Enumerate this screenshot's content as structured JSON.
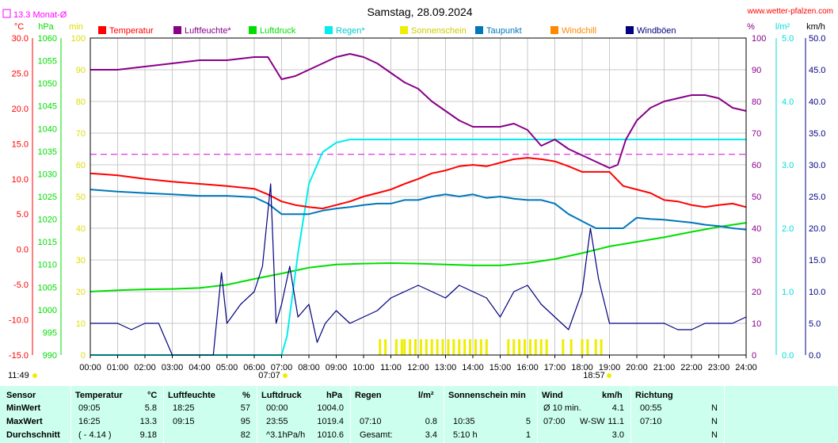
{
  "header": {
    "title": "Samstag, 28.09.2024",
    "website": "www.wetter-pfalzen.com",
    "monthly_rain": "13.3 Monat-Ø",
    "sunrise_time": "07:07",
    "sunset_time": "18:57",
    "left_corner_time": "11:49"
  },
  "axes": {
    "temp": {
      "unit": "°C",
      "min": -15,
      "max": 30,
      "ticks": [
        "30.0",
        "25.0",
        "20.0",
        "15.0",
        "10.0",
        "5.0",
        "0.0",
        "-5.0",
        "-10.0",
        "-15.0"
      ],
      "color": "#ff0000"
    },
    "pressure": {
      "unit": "hPa",
      "min": 990,
      "max": 1060,
      "ticks": [
        "1060",
        "1055",
        "1050",
        "1045",
        "1040",
        "1035",
        "1030",
        "1025",
        "1020",
        "1015",
        "1010",
        "1005",
        "1000",
        "995",
        "990"
      ],
      "color": "#00dd00"
    },
    "sun_min": {
      "unit": "min",
      "min": 0,
      "max": 100,
      "ticks": [
        "100",
        "90",
        "80",
        "70",
        "60",
        "50",
        "40",
        "30",
        "20",
        "10",
        "0"
      ],
      "color": "#dddd00"
    },
    "humidity": {
      "unit": "%",
      "min": 0,
      "max": 100,
      "ticks": [
        "100",
        "90",
        "80",
        "70",
        "60",
        "50",
        "40",
        "30",
        "20",
        "10",
        "0"
      ],
      "color": "#880088"
    },
    "rain": {
      "unit": "l/m²",
      "min": 0,
      "max": 5,
      "ticks": [
        "5.0",
        "4.0",
        "3.0",
        "2.0",
        "1.0",
        "0.0"
      ],
      "color": "#00dddd"
    },
    "wind": {
      "unit": "km/h",
      "min": 0,
      "max": 50,
      "ticks": [
        "50.0",
        "45.0",
        "40.0",
        "35.0",
        "30.0",
        "25.0",
        "20.0",
        "15.0",
        "10.0",
        "5.0",
        "0.0"
      ],
      "color": "#000080"
    },
    "x_ticks": [
      "00:00",
      "01:00",
      "02:00",
      "03:00",
      "04:00",
      "05:00",
      "06:00",
      "07:00",
      "08:00",
      "09:00",
      "10:00",
      "11:00",
      "12:00",
      "13:00",
      "14:00",
      "15:00",
      "16:00",
      "17:00",
      "18:00",
      "19:00",
      "20:00",
      "21:00",
      "22:00",
      "23:00",
      "24:00"
    ]
  },
  "legend": [
    {
      "label": "Temperatur",
      "color": "#ff0000"
    },
    {
      "label": "Luftfeuchte*",
      "color": "#880088"
    },
    {
      "label": "Luftdruck",
      "color": "#00dd00"
    },
    {
      "label": "Regen*",
      "color": "#00eeee"
    },
    {
      "label": "Sonnenschein",
      "color": "#eeee00"
    },
    {
      "label": "Taupunkt",
      "color": "#0077bb"
    },
    {
      "label": "Windchill",
      "color": "#ff8800"
    },
    {
      "label": "Windböen",
      "color": "#000080"
    }
  ],
  "chart_data": {
    "type": "line",
    "title": "Samstag, 28.09.2024",
    "x_unit": "hours",
    "xlim": [
      0,
      24
    ],
    "grid": true,
    "monthly_avg_humidity_line": 63.3,
    "series": [
      {
        "name": "Temperatur",
        "axis": "temp",
        "color": "#ff0000",
        "x": [
          0,
          1,
          2,
          3,
          4,
          5,
          6,
          6.5,
          7,
          7.5,
          8,
          8.5,
          9,
          9.5,
          10,
          10.5,
          11,
          11.5,
          12,
          12.5,
          13,
          13.5,
          14,
          14.5,
          15,
          15.5,
          16,
          16.5,
          17,
          17.5,
          18,
          18.5,
          19,
          19.5,
          20,
          20.5,
          21,
          21.5,
          22,
          22.5,
          23,
          23.5,
          24
        ],
        "y": [
          10.8,
          10.5,
          10.0,
          9.6,
          9.3,
          9.0,
          8.6,
          7.8,
          6.8,
          6.3,
          6.0,
          5.8,
          6.3,
          6.8,
          7.5,
          8.0,
          8.5,
          9.3,
          10.0,
          10.8,
          11.2,
          11.8,
          12.0,
          11.8,
          12.3,
          12.8,
          13.0,
          12.8,
          12.5,
          11.8,
          11.0,
          11.0,
          11.0,
          9.0,
          8.5,
          8.0,
          7.0,
          6.8,
          6.3,
          6.0,
          6.3,
          6.5,
          6.0
        ]
      },
      {
        "name": "Luftfeuchte*",
        "axis": "humidity",
        "color": "#880088",
        "x": [
          0,
          1,
          2,
          3,
          4,
          5,
          6,
          6.5,
          7,
          7.5,
          8,
          8.5,
          9,
          9.5,
          10,
          10.5,
          11,
          11.5,
          12,
          12.5,
          13,
          13.5,
          14,
          14.5,
          15,
          15.5,
          16,
          16.5,
          17,
          17.5,
          18,
          18.5,
          19,
          19.3,
          19.6,
          20,
          20.5,
          21,
          21.5,
          22,
          22.5,
          23,
          23.5,
          24
        ],
        "y": [
          90,
          90,
          91,
          92,
          93,
          93,
          94,
          94,
          87,
          88,
          90,
          92,
          94,
          95,
          94,
          92,
          89,
          86,
          84,
          80,
          77,
          74,
          72,
          72,
          72,
          73,
          71,
          66,
          68,
          65,
          63,
          61,
          59,
          60,
          68,
          74,
          78,
          80,
          81,
          82,
          82,
          81,
          78,
          77
        ]
      },
      {
        "name": "Luftdruck",
        "axis": "pressure",
        "color": "#00dd00",
        "x": [
          0,
          1,
          2,
          3,
          4,
          5,
          6,
          7,
          8,
          9,
          10,
          11,
          12,
          13,
          14,
          15,
          16,
          17,
          18,
          19,
          20,
          21,
          22,
          23,
          24
        ],
        "y": [
          1004.0,
          1004.3,
          1004.5,
          1004.6,
          1004.8,
          1005.5,
          1006.8,
          1008.0,
          1009.3,
          1010.0,
          1010.2,
          1010.3,
          1010.2,
          1010.0,
          1009.8,
          1009.8,
          1010.3,
          1011.2,
          1012.5,
          1014.0,
          1015.0,
          1016.0,
          1017.2,
          1018.3,
          1019.2
        ]
      },
      {
        "name": "Regen*",
        "axis": "rain",
        "color": "#00eeee",
        "x": [
          0,
          7,
          7.2,
          7.6,
          8,
          8.5,
          9,
          9.5,
          10,
          11,
          12,
          13,
          14,
          15,
          16,
          17,
          18,
          19,
          20,
          21,
          22,
          23,
          24
        ],
        "y": [
          0,
          0,
          0.3,
          1.6,
          2.7,
          3.2,
          3.35,
          3.4,
          3.4,
          3.4,
          3.4,
          3.4,
          3.4,
          3.4,
          3.4,
          3.4,
          3.4,
          3.4,
          3.4,
          3.4,
          3.4,
          3.4,
          3.4
        ]
      },
      {
        "name": "Taupunkt",
        "axis": "temp",
        "color": "#0077bb",
        "x": [
          0,
          1,
          2,
          3,
          4,
          5,
          6,
          6.5,
          7,
          7.5,
          8,
          8.5,
          9,
          9.5,
          10,
          10.5,
          11,
          11.5,
          12,
          12.5,
          13,
          13.5,
          14,
          14.5,
          15,
          15.5,
          16,
          16.5,
          17,
          17.5,
          18,
          18.5,
          19,
          19.5,
          20,
          20.5,
          21,
          21.5,
          22,
          22.5,
          23,
          23.5,
          24
        ],
        "y": [
          8.5,
          8.2,
          8.0,
          7.8,
          7.6,
          7.6,
          7.4,
          6.5,
          5.0,
          5.0,
          5.0,
          5.5,
          5.8,
          6.0,
          6.3,
          6.5,
          6.5,
          7.0,
          7.0,
          7.5,
          7.8,
          7.5,
          7.8,
          7.3,
          7.5,
          7.2,
          7.0,
          7.0,
          6.5,
          5.0,
          4.0,
          3.0,
          3.0,
          3.0,
          4.5,
          4.3,
          4.2,
          4.0,
          3.8,
          3.5,
          3.3,
          3.0,
          2.8
        ]
      },
      {
        "name": "Windböen",
        "axis": "wind",
        "color": "#000080",
        "x": [
          0,
          0.5,
          1,
          1.5,
          2,
          2.5,
          3,
          3.5,
          4,
          4.5,
          4.8,
          5,
          5.5,
          6,
          6.3,
          6.6,
          6.8,
          7,
          7.3,
          7.6,
          8,
          8.3,
          8.6,
          9,
          9.5,
          10,
          10.5,
          11,
          11.5,
          12,
          12.5,
          13,
          13.5,
          14,
          14.5,
          15,
          15.5,
          16,
          16.5,
          17,
          17.5,
          18,
          18.3,
          18.6,
          19,
          19.5,
          20,
          20.5,
          21,
          21.5,
          22,
          22.5,
          23,
          23.5,
          24
        ],
        "y": [
          5,
          5,
          5,
          4,
          5,
          5,
          0,
          0,
          0,
          0,
          13,
          5,
          8,
          10,
          14,
          27,
          5,
          8,
          14,
          6,
          8,
          2,
          5,
          7,
          5,
          6,
          7,
          9,
          10,
          11,
          10,
          9,
          11,
          10,
          9,
          6,
          10,
          11,
          8,
          6,
          4,
          10,
          20,
          12,
          5,
          5,
          5,
          5,
          5,
          4,
          4,
          5,
          5,
          5,
          6
        ]
      }
    ],
    "sunshine_bars": {
      "axis": "sun_min",
      "x": [
        10.6,
        10.8,
        11.2,
        11.4,
        11.5,
        11.7,
        11.9,
        12.1,
        12.3,
        12.5,
        12.7,
        12.9,
        13.1,
        13.3,
        13.5,
        13.7,
        13.9,
        14.1,
        14.3,
        14.5,
        15.3,
        15.5,
        15.7,
        15.9,
        16.1,
        16.3,
        16.5,
        16.7,
        17.3,
        17.6,
        18.0,
        18.2,
        18.5,
        18.7
      ],
      "y": [
        5,
        5,
        5,
        5,
        5,
        5,
        5,
        5,
        5,
        5,
        5,
        5,
        5,
        5,
        5,
        5,
        5,
        5,
        5,
        5,
        5,
        5,
        5,
        5,
        5,
        5,
        5,
        5,
        5,
        5,
        5,
        5,
        5,
        5
      ]
    }
  },
  "stats": {
    "headers": {
      "sensor": "Sensor",
      "temperature": "Temperatur",
      "temperature_unit": "°C",
      "humidity": "Luftfeuchte",
      "humidity_unit": "%",
      "pressure": "Luftdruck",
      "pressure_unit": "hPa",
      "rain": "Regen",
      "rain_unit": "l/m²",
      "sun": "Sonnenschein min",
      "wind": "Wind",
      "wind_unit": "km/h",
      "direction": "Richtung"
    },
    "rows": [
      {
        "label": "MinWert",
        "temp_time": "09:05",
        "temp_val": "5.8",
        "hum_time": "18:25",
        "hum_val": "57",
        "press_time": "00:00",
        "press_val": "1004.0",
        "rain_time": "",
        "rain_val": "",
        "sun_time": "",
        "sun_val": "",
        "wind_time": "Ø 10 min.",
        "wind_val": "4.1",
        "dir_time": "00:55",
        "dir_val": "N"
      },
      {
        "label": "MaxWert",
        "temp_time": "16:25",
        "temp_val": "13.3",
        "hum_time": "09:15",
        "hum_val": "95",
        "press_time": "23:55",
        "press_val": "1019.4",
        "rain_time": "07:10",
        "rain_val": "0.8",
        "sun_time": "10:35",
        "sun_val": "5",
        "wind_time": "07:00",
        "wind_dir": "W-SW",
        "wind_val": "11.1",
        "dir_time": "07:10",
        "dir_val": "N"
      },
      {
        "label": "Durchschnitt",
        "temp_time": "( - 4.14 )",
        "temp_val": "9.18",
        "hum_time": "",
        "hum_val": "82",
        "press_time": "^3.1hPa/h",
        "press_val": "1010.6",
        "rain_time": "Gesamt:",
        "rain_val": "3.4",
        "sun_time": "5:10 h",
        "sun_val": "1",
        "wind_time": "",
        "wind_val": "3.0",
        "dir_time": "",
        "dir_val": "N"
      }
    ]
  }
}
